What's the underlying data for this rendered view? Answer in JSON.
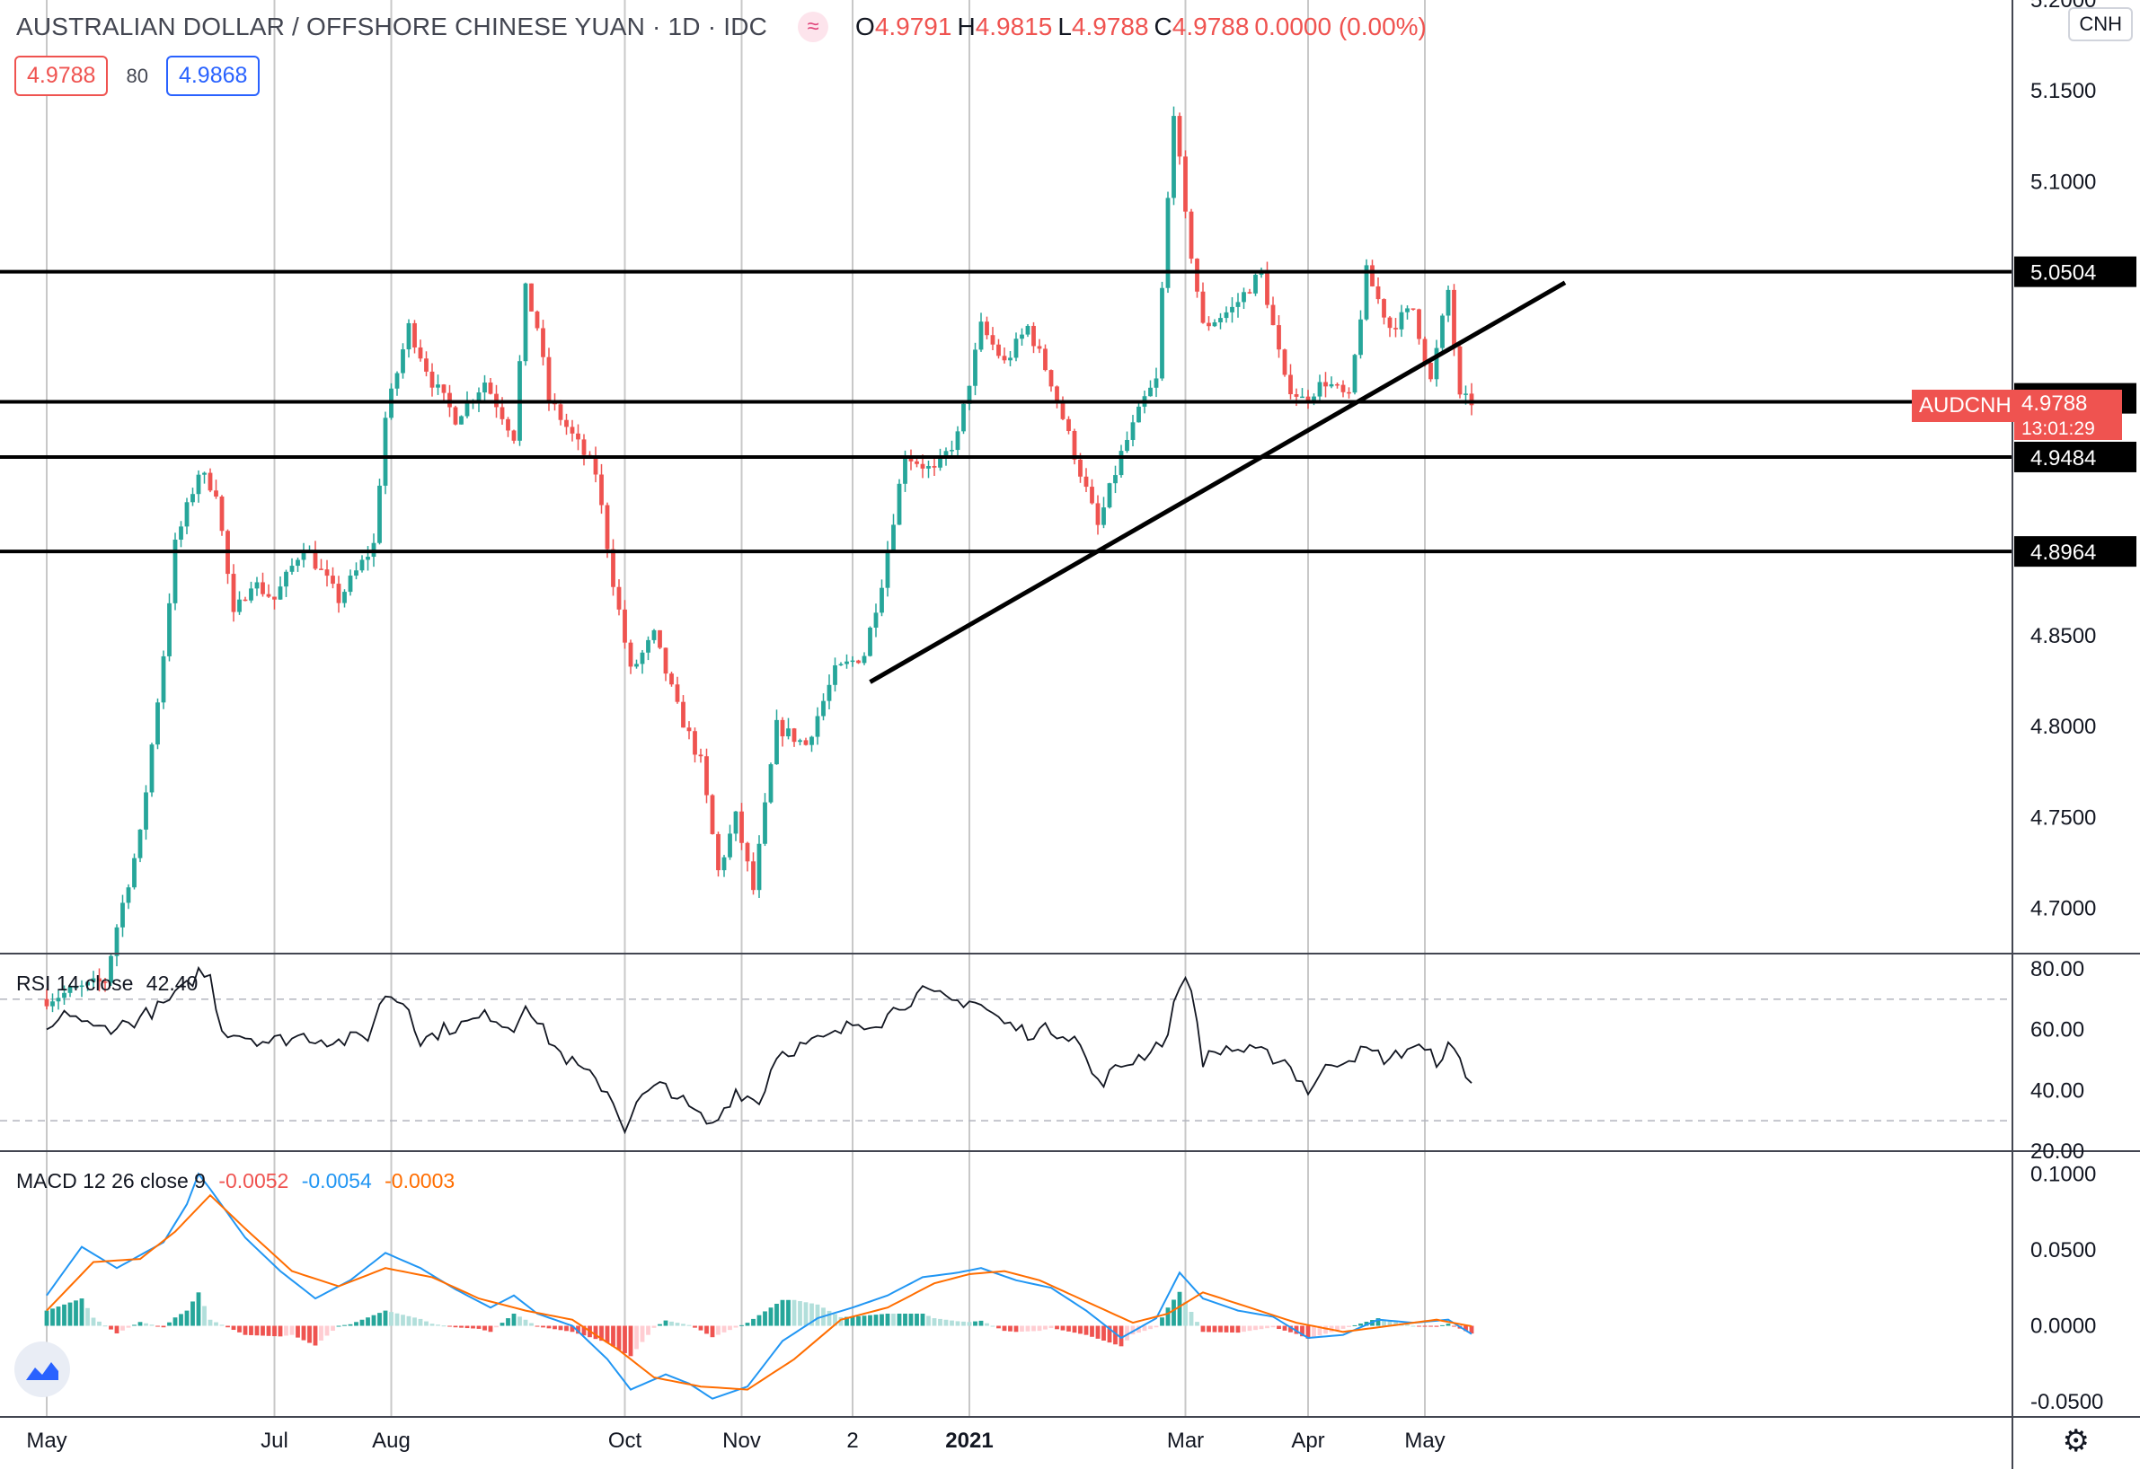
{
  "header": {
    "symbol": "AUSTRALIAN DOLLAR / OFFSHORE CHINESE YUAN · 1D · IDC",
    "o_label": "O",
    "o_value": "4.9791",
    "h_label": "H",
    "h_value": "4.9815",
    "l_label": "L",
    "l_value": "4.9788",
    "c_label": "C",
    "c_value": "4.9788",
    "change": "0.0000 (0.00%)"
  },
  "prices": {
    "sell": "4.9788",
    "spread": "80",
    "buy": "4.9868"
  },
  "currency": "CNH",
  "colors": {
    "up": "#26a69a",
    "down": "#ef5350",
    "rsi": "#131722",
    "macd": "#2196f3",
    "signal": "#ff6d00",
    "hline": "#000000"
  },
  "rsi_label": {
    "name": "RSI 14 close",
    "value": "42.40"
  },
  "macd_label": {
    "name": "MACD 12 26 close 9",
    "hist": "-0.0052",
    "macd": "-0.0054",
    "signal": "-0.0003"
  },
  "last_tag": {
    "symbol": "AUDCNH",
    "price": "4.9788",
    "countdown": "13:01:29"
  },
  "chart_data": {
    "type": "candlestick",
    "title": "AUSTRALIAN DOLLAR / OFFSHORE CHINESE YUAN · 1D · IDC",
    "price_axis": {
      "ylim": [
        4.675,
        5.2
      ],
      "ticks": [
        "4.7000",
        "4.7500",
        "4.8000",
        "4.8500",
        "4.9000",
        "4.9500",
        "5.0000",
        "5.0500",
        "5.1000",
        "5.1500",
        "5.2000"
      ],
      "visible_ticks": [
        "4.7000",
        "4.7500",
        "4.8000",
        "4.8500",
        "5.1000",
        "5.1500",
        "5.2000"
      ]
    },
    "x_axis": {
      "labels": [
        "May",
        "Jul",
        "Aug",
        "Oct",
        "Nov",
        "2",
        "2021",
        "Mar",
        "Apr",
        "May"
      ],
      "bold_labels": [
        "2021"
      ],
      "label_bar": [
        0,
        39,
        59,
        99,
        119,
        138,
        158,
        195,
        216,
        236
      ],
      "total_bars": 260
    },
    "horizontal_levels": [
      {
        "value": 5.0504,
        "label": "5.0504"
      },
      {
        "value": 4.9807,
        "label": "4.9807",
        "line": false
      },
      {
        "value": 4.9788,
        "label": "4.9788"
      },
      {
        "value": 4.9484,
        "label": "4.9484"
      },
      {
        "value": 4.8964,
        "label": "4.8964"
      }
    ],
    "trendline": {
      "from": {
        "bar": 141,
        "price": 4.8245
      },
      "to": {
        "bar": 260,
        "price": 5.0444
      }
    },
    "price_anchors": [
      [
        0,
        4.65
      ],
      [
        10,
        4.66
      ],
      [
        12,
        4.69
      ],
      [
        16,
        4.74
      ],
      [
        20,
        4.84
      ],
      [
        22,
        4.9
      ],
      [
        26,
        4.94
      ],
      [
        29,
        4.93
      ],
      [
        32,
        4.86
      ],
      [
        35,
        4.88
      ],
      [
        39,
        4.87
      ],
      [
        44,
        4.9
      ],
      [
        50,
        4.87
      ],
      [
        56,
        4.9
      ],
      [
        58,
        4.97
      ],
      [
        62,
        5.02
      ],
      [
        66,
        4.99
      ],
      [
        70,
        4.97
      ],
      [
        75,
        4.99
      ],
      [
        80,
        4.96
      ],
      [
        82,
        5.04
      ],
      [
        84,
        5.02
      ],
      [
        86,
        4.98
      ],
      [
        90,
        4.96
      ],
      [
        94,
        4.94
      ],
      [
        97,
        4.88
      ],
      [
        100,
        4.83
      ],
      [
        104,
        4.85
      ],
      [
        108,
        4.81
      ],
      [
        112,
        4.78
      ],
      [
        115,
        4.72
      ],
      [
        118,
        4.75
      ],
      [
        121,
        4.71
      ],
      [
        125,
        4.8
      ],
      [
        130,
        4.79
      ],
      [
        135,
        4.83
      ],
      [
        140,
        4.84
      ],
      [
        143,
        4.88
      ],
      [
        147,
        4.95
      ],
      [
        152,
        4.94
      ],
      [
        156,
        4.96
      ],
      [
        160,
        5.02
      ],
      [
        164,
        5.0
      ],
      [
        168,
        5.02
      ],
      [
        172,
        4.99
      ],
      [
        176,
        4.95
      ],
      [
        180,
        4.91
      ],
      [
        184,
        4.95
      ],
      [
        188,
        4.98
      ],
      [
        190,
        4.99
      ],
      [
        193,
        5.14
      ],
      [
        195,
        5.08
      ],
      [
        198,
        5.02
      ],
      [
        203,
        5.03
      ],
      [
        208,
        5.05
      ],
      [
        212,
        4.99
      ],
      [
        215,
        4.98
      ],
      [
        219,
        4.99
      ],
      [
        223,
        4.98
      ],
      [
        226,
        5.05
      ],
      [
        230,
        5.02
      ],
      [
        234,
        5.03
      ],
      [
        237,
        4.99
      ],
      [
        240,
        5.04
      ],
      [
        242,
        4.98
      ],
      [
        244,
        4.979
      ]
    ],
    "rsi": {
      "ylim": [
        20,
        85
      ],
      "ticks": [
        "20.00",
        "40.00",
        "60.00",
        "80.00"
      ],
      "bands": [
        30,
        70
      ],
      "anchors": [
        [
          0,
          59
        ],
        [
          4,
          66
        ],
        [
          8,
          60
        ],
        [
          14,
          62
        ],
        [
          20,
          68
        ],
        [
          24,
          74
        ],
        [
          26,
          79
        ],
        [
          28,
          77
        ],
        [
          30,
          60
        ],
        [
          34,
          58
        ],
        [
          38,
          56
        ],
        [
          44,
          58
        ],
        [
          50,
          56
        ],
        [
          55,
          58
        ],
        [
          58,
          72
        ],
        [
          62,
          68
        ],
        [
          64,
          56
        ],
        [
          68,
          60
        ],
        [
          72,
          62
        ],
        [
          76,
          65
        ],
        [
          80,
          60
        ],
        [
          82,
          70
        ],
        [
          84,
          62
        ],
        [
          88,
          52
        ],
        [
          92,
          46
        ],
        [
          96,
          40
        ],
        [
          99,
          28
        ],
        [
          102,
          38
        ],
        [
          106,
          42
        ],
        [
          110,
          34
        ],
        [
          114,
          28
        ],
        [
          118,
          40
        ],
        [
          122,
          36
        ],
        [
          125,
          52
        ],
        [
          130,
          55
        ],
        [
          135,
          58
        ],
        [
          138,
          62
        ],
        [
          143,
          63
        ],
        [
          146,
          68
        ],
        [
          150,
          72
        ],
        [
          156,
          69
        ],
        [
          158,
          70
        ],
        [
          160,
          68
        ],
        [
          164,
          62
        ],
        [
          168,
          59
        ],
        [
          172,
          60
        ],
        [
          176,
          58
        ],
        [
          180,
          42
        ],
        [
          184,
          48
        ],
        [
          188,
          52
        ],
        [
          192,
          58
        ],
        [
          194,
          76
        ],
        [
          196,
          74
        ],
        [
          198,
          50
        ],
        [
          202,
          54
        ],
        [
          208,
          52
        ],
        [
          212,
          50
        ],
        [
          216,
          40
        ],
        [
          220,
          49
        ],
        [
          226,
          53
        ],
        [
          230,
          50
        ],
        [
          234,
          55
        ],
        [
          238,
          50
        ],
        [
          240,
          54
        ],
        [
          242,
          50
        ],
        [
          244,
          42.4
        ]
      ]
    },
    "macd": {
      "ylim": [
        -0.06,
        0.115
      ],
      "ticks": [
        "-0.0500",
        "0.0000",
        "0.0500",
        "0.1000"
      ],
      "macd_anchors": [
        [
          0,
          0.02
        ],
        [
          6,
          0.052
        ],
        [
          12,
          0.038
        ],
        [
          20,
          0.055
        ],
        [
          24,
          0.08
        ],
        [
          26,
          0.1
        ],
        [
          28,
          0.09
        ],
        [
          34,
          0.058
        ],
        [
          40,
          0.036
        ],
        [
          46,
          0.018
        ],
        [
          52,
          0.03
        ],
        [
          58,
          0.048
        ],
        [
          64,
          0.038
        ],
        [
          70,
          0.024
        ],
        [
          76,
          0.012
        ],
        [
          80,
          0.02
        ],
        [
          84,
          0.008
        ],
        [
          90,
          0.0
        ],
        [
          96,
          -0.022
        ],
        [
          100,
          -0.042
        ],
        [
          106,
          -0.032
        ],
        [
          110,
          -0.038
        ],
        [
          114,
          -0.048
        ],
        [
          120,
          -0.04
        ],
        [
          126,
          -0.01
        ],
        [
          132,
          0.005
        ],
        [
          138,
          0.012
        ],
        [
          144,
          0.02
        ],
        [
          150,
          0.032
        ],
        [
          156,
          0.035
        ],
        [
          160,
          0.038
        ],
        [
          166,
          0.03
        ],
        [
          172,
          0.025
        ],
        [
          178,
          0.01
        ],
        [
          184,
          -0.008
        ],
        [
          190,
          0.005
        ],
        [
          194,
          0.035
        ],
        [
          198,
          0.018
        ],
        [
          204,
          0.01
        ],
        [
          210,
          0.006
        ],
        [
          216,
          -0.008
        ],
        [
          222,
          -0.006
        ],
        [
          228,
          0.004
        ],
        [
          234,
          0.002
        ],
        [
          240,
          0.004
        ],
        [
          244,
          -0.0054
        ]
      ],
      "signal_anchors": [
        [
          0,
          0.01
        ],
        [
          8,
          0.042
        ],
        [
          16,
          0.044
        ],
        [
          22,
          0.062
        ],
        [
          28,
          0.086
        ],
        [
          34,
          0.064
        ],
        [
          42,
          0.036
        ],
        [
          50,
          0.026
        ],
        [
          58,
          0.038
        ],
        [
          66,
          0.032
        ],
        [
          74,
          0.018
        ],
        [
          82,
          0.01
        ],
        [
          90,
          0.004
        ],
        [
          98,
          -0.016
        ],
        [
          104,
          -0.034
        ],
        [
          112,
          -0.04
        ],
        [
          120,
          -0.042
        ],
        [
          128,
          -0.022
        ],
        [
          136,
          0.004
        ],
        [
          144,
          0.012
        ],
        [
          152,
          0.028
        ],
        [
          158,
          0.034
        ],
        [
          164,
          0.036
        ],
        [
          170,
          0.03
        ],
        [
          178,
          0.016
        ],
        [
          186,
          0.002
        ],
        [
          192,
          0.008
        ],
        [
          198,
          0.022
        ],
        [
          206,
          0.012
        ],
        [
          214,
          0.002
        ],
        [
          222,
          -0.004
        ],
        [
          230,
          0.0
        ],
        [
          238,
          0.004
        ],
        [
          244,
          -0.0003
        ]
      ]
    }
  }
}
